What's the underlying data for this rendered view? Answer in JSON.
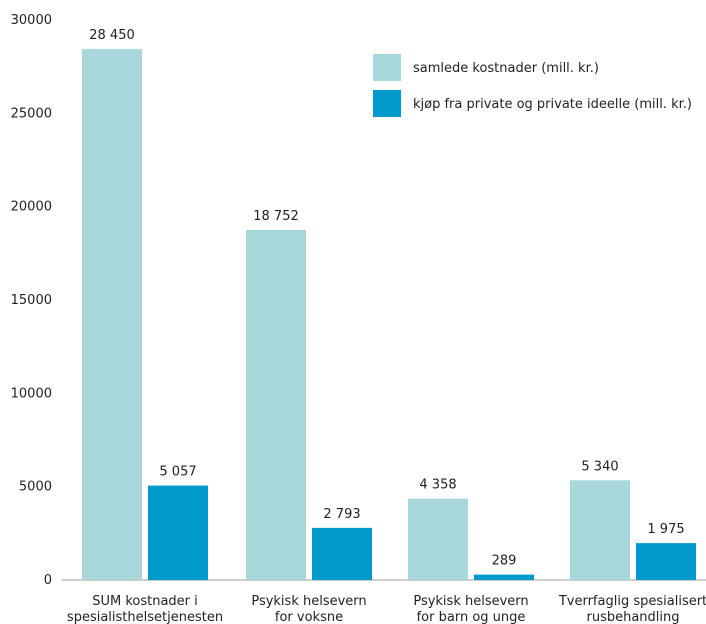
{
  "chart_data": {
    "type": "bar",
    "title": "",
    "xlabel": "",
    "ylabel": "",
    "ylim": [
      0,
      30000
    ],
    "yticks": [
      0,
      5000,
      10000,
      15000,
      20000,
      25000,
      30000
    ],
    "grid": false,
    "legend_position": "top-right",
    "categories": [
      [
        "SUM kostnader i",
        "spesialisthelsetjenesten"
      ],
      [
        "Psykisk helsevern",
        "for voksne"
      ],
      [
        "Psykisk helsevern",
        "for barn og unge"
      ],
      [
        "Tverrfaglig spesialisert",
        "rusbehandling"
      ]
    ],
    "series": [
      {
        "name": "samlede kostnader (mill. kr.)",
        "color": "#a8d8dc",
        "values": [
          28450,
          18752,
          4358,
          5340
        ],
        "labels": [
          "28 450",
          "18 752",
          "4 358",
          "5 340"
        ]
      },
      {
        "name": "kjøp fra private og private ideelle (mill. kr.)",
        "color": "#0099cc",
        "values": [
          5057,
          2793,
          289,
          1975
        ],
        "labels": [
          "5 057",
          "2 793",
          "289",
          "1 975"
        ]
      }
    ]
  }
}
